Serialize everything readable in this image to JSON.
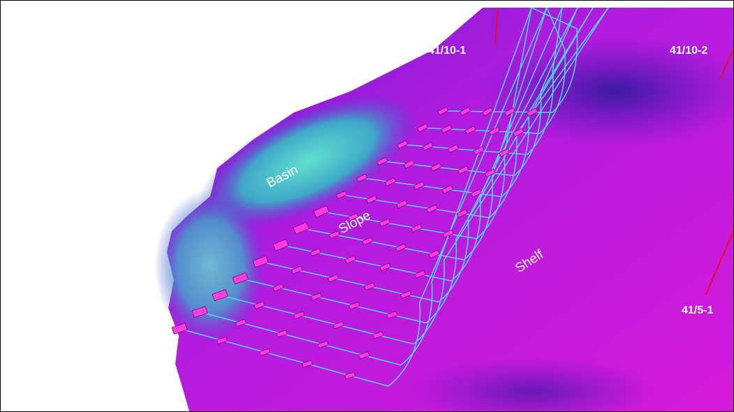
{
  "wells": [
    {
      "label": "41/10-1"
    },
    {
      "label": "41/10-2"
    },
    {
      "label": "41/5-1"
    }
  ],
  "regions": [
    {
      "label": "Basin"
    },
    {
      "label": "Slope"
    },
    {
      "label": "Shelf"
    }
  ]
}
